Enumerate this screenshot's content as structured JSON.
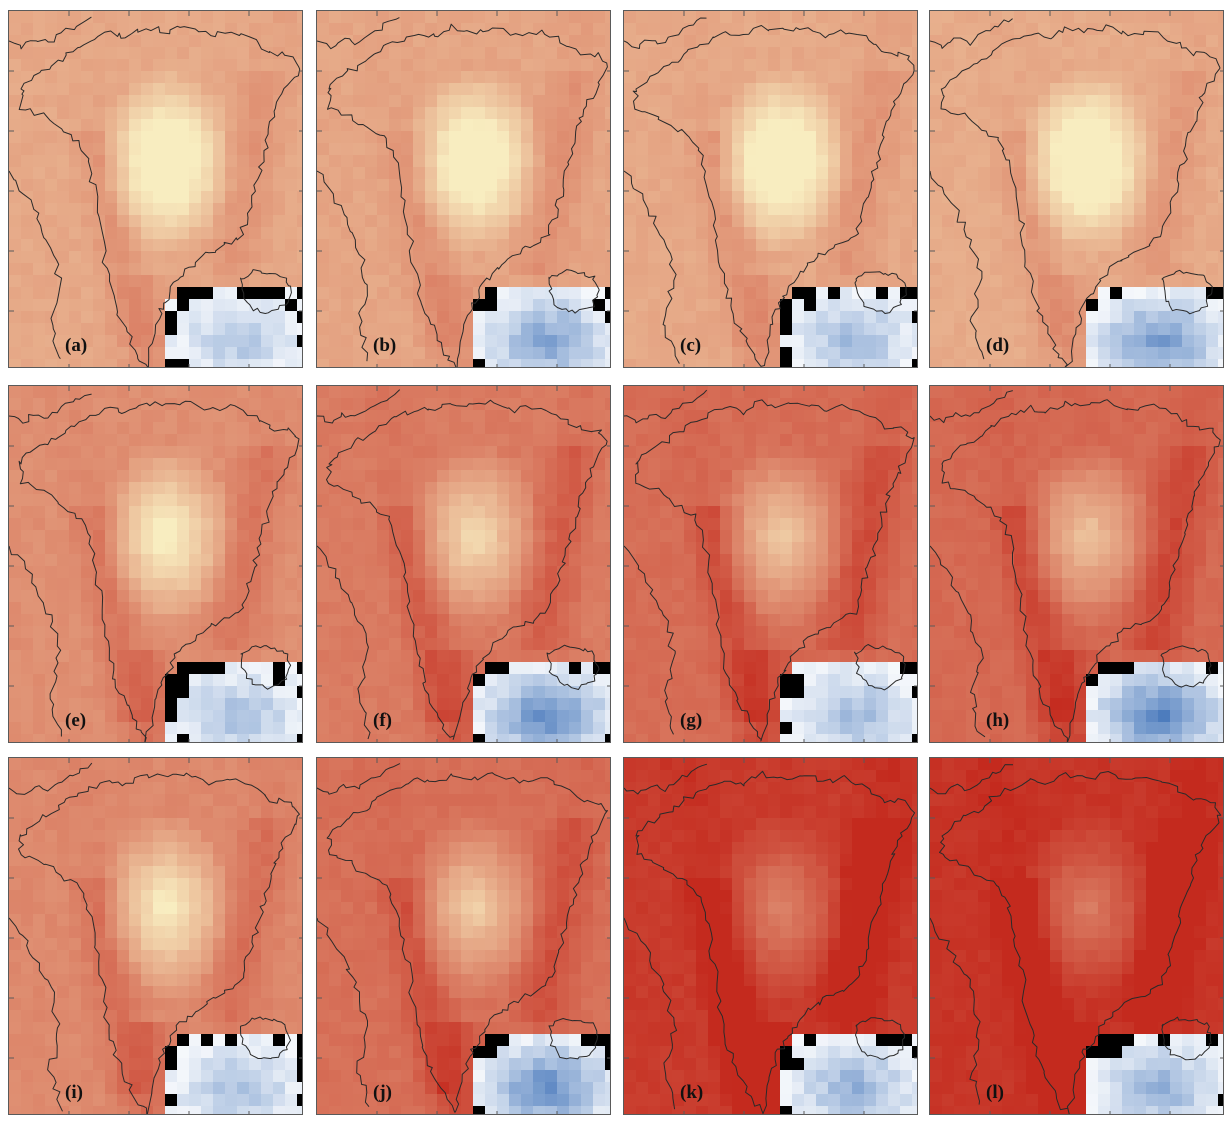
{
  "figure": {
    "panels": [
      {
        "label": "(a)",
        "intensity": 0.1,
        "ocean_cold": 0.4
      },
      {
        "label": "(b)",
        "intensity": 0.12,
        "ocean_cold": 0.65
      },
      {
        "label": "(c)",
        "intensity": 0.1,
        "ocean_cold": 0.5
      },
      {
        "label": "(d)",
        "intensity": 0.08,
        "ocean_cold": 0.7
      },
      {
        "label": "(e)",
        "intensity": 0.28,
        "ocean_cold": 0.45
      },
      {
        "label": "(f)",
        "intensity": 0.42,
        "ocean_cold": 0.8
      },
      {
        "label": "(g)",
        "intensity": 0.52,
        "ocean_cold": 0.5
      },
      {
        "label": "(h)",
        "intensity": 0.55,
        "ocean_cold": 0.85
      },
      {
        "label": "(i)",
        "intensity": 0.32,
        "ocean_cold": 0.45
      },
      {
        "label": "(j)",
        "intensity": 0.5,
        "ocean_cold": 0.8
      },
      {
        "label": "(k)",
        "intensity": 0.88,
        "ocean_cold": 0.55
      },
      {
        "label": "(l)",
        "intensity": 0.92,
        "ocean_cold": 0.55
      }
    ],
    "colors": {
      "warm_low": "#f8edc0",
      "warm_high": "#c42a1e",
      "cold_low": "#ffffff",
      "cold_high": "#2f66b2",
      "coast": "#2a2a2a",
      "frame": "#5a5a5a"
    }
  }
}
